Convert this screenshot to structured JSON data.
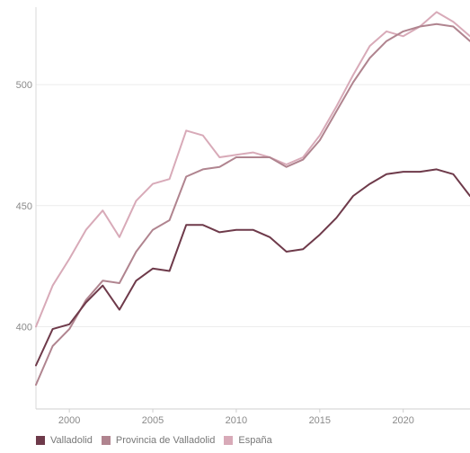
{
  "chart_data": {
    "type": "line",
    "title": "",
    "xlabel": "",
    "ylabel": "",
    "xlim": [
      1998,
      2024
    ],
    "ylim": [
      366,
      532
    ],
    "x_ticks": [
      2000,
      2005,
      2010,
      2015,
      2020
    ],
    "y_ticks": [
      400,
      450,
      500
    ],
    "grid": "horizontal",
    "legend_position": "bottom-left",
    "x": [
      1998,
      1999,
      2000,
      2001,
      2002,
      2003,
      2004,
      2005,
      2006,
      2007,
      2008,
      2009,
      2010,
      2011,
      2012,
      2013,
      2014,
      2015,
      2016,
      2017,
      2018,
      2019,
      2020,
      2021,
      2022,
      2023,
      2024
    ],
    "series": [
      {
        "name": "Valladolid",
        "color": "#6e3a4a",
        "values": [
          384,
          399,
          401,
          410,
          417,
          407,
          419,
          424,
          423,
          442,
          442,
          439,
          440,
          440,
          437,
          431,
          432,
          438,
          445,
          454,
          459,
          463,
          464,
          464,
          465,
          463,
          454
        ]
      },
      {
        "name": "Provincia de Valladolid",
        "color": "#b0848f",
        "values": [
          376,
          392,
          399,
          411,
          419,
          418,
          431,
          440,
          444,
          462,
          465,
          466,
          470,
          470,
          470,
          466,
          469,
          477,
          489,
          501,
          511,
          518,
          522,
          524,
          525,
          524,
          518
        ]
      },
      {
        "name": "España",
        "color": "#d8aab8",
        "values": [
          400,
          417,
          428,
          440,
          448,
          437,
          452,
          459,
          461,
          481,
          479,
          470,
          471,
          472,
          470,
          467,
          470,
          479,
          491,
          504,
          516,
          522,
          520,
          524,
          530,
          526,
          520
        ]
      }
    ]
  }
}
